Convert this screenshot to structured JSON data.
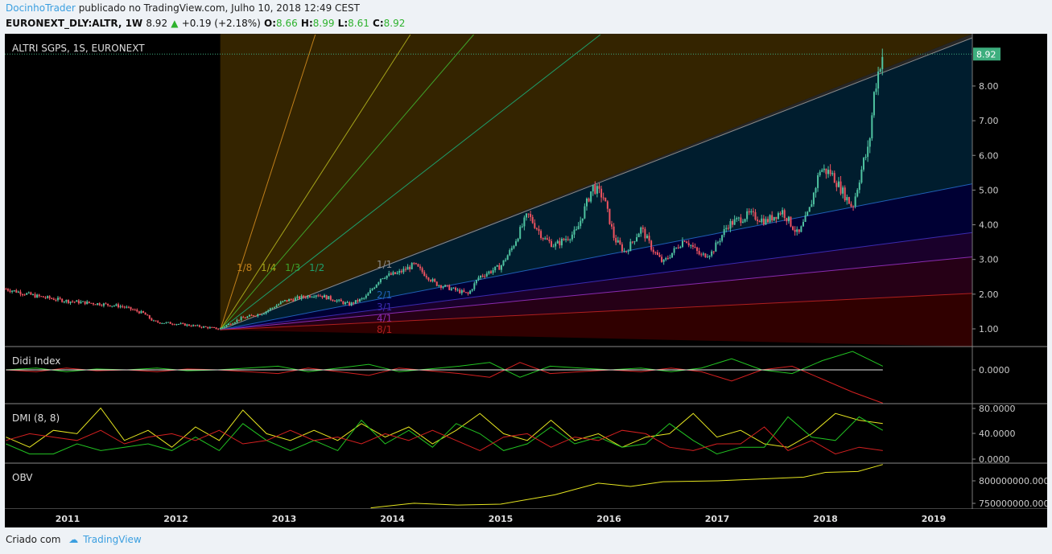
{
  "header": {
    "author": "DocinhoTrader",
    "published": "publicado no TradingView.com, Julho 10, 2018 12:49 CEST",
    "symbol": "EURONEXT_DLY:ALTR, 1W",
    "last": "8.92",
    "change": "+0.19 (+2.18%)",
    "o_label": "O:",
    "o": "8.66",
    "h_label": "H:",
    "h": "8.99",
    "l_label": "L:",
    "l": "8.61",
    "c_label": "C:",
    "c": "8.92"
  },
  "footer": {
    "created": "Criado com",
    "brand": "TradingView"
  },
  "colors": {
    "up": "#4fc3a1",
    "down": "#ef5360",
    "background": "#000000",
    "last_price": "#3dae7e"
  },
  "chart_data": [
    {
      "type": "candlestick",
      "title": "ALTRI SGPS, 1S, EURONEXT",
      "last_price_label": "8.92",
      "y_ticks": [
        "1.00",
        "2.00",
        "3.00",
        "4.00",
        "5.00",
        "6.00",
        "7.00",
        "8.00"
      ],
      "x_ticks": [
        "2011",
        "2012",
        "2013",
        "2014",
        "2015",
        "2016",
        "2017",
        "2018",
        "2019"
      ],
      "price_path": [
        [
          2010.43,
          2.15
        ],
        [
          2010.7,
          1.95
        ],
        [
          2011.0,
          1.8
        ],
        [
          2011.3,
          1.72
        ],
        [
          2011.5,
          1.65
        ],
        [
          2011.7,
          1.45
        ],
        [
          2011.8,
          1.2
        ],
        [
          2012.0,
          1.15
        ],
        [
          2012.4,
          1.0
        ],
        [
          2012.6,
          1.3
        ],
        [
          2012.8,
          1.45
        ],
        [
          2013.0,
          1.8
        ],
        [
          2013.3,
          2.0
        ],
        [
          2013.6,
          1.7
        ],
        [
          2013.75,
          1.9
        ],
        [
          2013.9,
          2.5
        ],
        [
          2014.05,
          2.6
        ],
        [
          2014.2,
          2.85
        ],
        [
          2014.4,
          2.3
        ],
        [
          2014.7,
          2.0
        ],
        [
          2014.8,
          2.5
        ],
        [
          2015.0,
          2.8
        ],
        [
          2015.1,
          3.3
        ],
        [
          2015.25,
          4.3
        ],
        [
          2015.4,
          3.6
        ],
        [
          2015.5,
          3.4
        ],
        [
          2015.7,
          3.8
        ],
        [
          2015.85,
          5.1
        ],
        [
          2015.95,
          4.8
        ],
        [
          2016.05,
          3.6
        ],
        [
          2016.15,
          3.2
        ],
        [
          2016.3,
          3.9
        ],
        [
          2016.4,
          3.3
        ],
        [
          2016.5,
          2.9
        ],
        [
          2016.7,
          3.6
        ],
        [
          2016.85,
          3.1
        ],
        [
          2016.95,
          3.2
        ],
        [
          2017.1,
          4.0
        ],
        [
          2017.3,
          4.3
        ],
        [
          2017.45,
          4.1
        ],
        [
          2017.6,
          4.4
        ],
        [
          2017.75,
          3.7
        ],
        [
          2017.85,
          4.4
        ],
        [
          2017.95,
          5.6
        ],
        [
          2018.05,
          5.5
        ],
        [
          2018.15,
          5.0
        ],
        [
          2018.25,
          4.5
        ],
        [
          2018.35,
          5.8
        ],
        [
          2018.4,
          6.2
        ],
        [
          2018.45,
          7.8
        ],
        [
          2018.5,
          8.6
        ],
        [
          2018.53,
          8.92
        ]
      ],
      "gann_fan": {
        "origin": [
          2012.41,
          0.97
        ],
        "lines": [
          {
            "label": "1/8",
            "color": "#c07f1a"
          },
          {
            "label": "1/4",
            "color": "#a5a51a"
          },
          {
            "label": "1/3",
            "color": "#3fa32a"
          },
          {
            "label": "1/2",
            "color": "#1e9e6a"
          },
          {
            "label": "1/1",
            "color": "#8a8a8a"
          },
          {
            "label": "2/1",
            "color": "#1f5fb5"
          },
          {
            "label": "3/1",
            "color": "#3c2ab0"
          },
          {
            "label": "4/1",
            "color": "#8a2bb0"
          },
          {
            "label": "8/1",
            "color": "#b01f1f"
          }
        ]
      }
    },
    {
      "type": "line",
      "title": "Didi Index",
      "y_ticks": [
        "0.0000"
      ],
      "series": [
        {
          "color": "#22c422",
          "values": [
            0,
            0.1,
            -0.1,
            0.05,
            0,
            0.1,
            -0.05,
            0,
            0.1,
            0.2,
            -0.1,
            0.1,
            0.3,
            -0.1,
            0.05,
            0.2,
            0.4,
            -0.4,
            0.2,
            0.1,
            0,
            0.1,
            -0.1,
            0.1,
            0.6,
            0,
            -0.2,
            0.5,
            1.0,
            0.2
          ]
        },
        {
          "color": "#d42020",
          "values": [
            0,
            -0.1,
            0.1,
            -0.05,
            0,
            -0.1,
            0.05,
            0,
            -0.1,
            -0.2,
            0.1,
            -0.1,
            -0.3,
            0.1,
            -0.05,
            -0.2,
            -0.4,
            0.4,
            -0.2,
            -0.1,
            0,
            -0.1,
            0.1,
            -0.1,
            -0.6,
            0,
            0.2,
            -0.5,
            -1.2,
            -1.8
          ]
        },
        {
          "color": "#e8e8e8",
          "values": [
            0,
            0,
            0,
            0,
            0,
            0,
            0,
            0,
            0,
            0,
            0,
            0,
            0,
            0,
            0,
            0,
            0,
            0,
            0,
            0,
            0,
            0,
            0,
            0,
            0,
            0,
            0,
            0,
            0,
            0
          ]
        }
      ]
    },
    {
      "type": "line",
      "title": "DMI (8, 8)",
      "y_ticks": [
        "80.0000",
        "40.0000",
        "0.0000"
      ],
      "series": [
        {
          "color": "#e6e620",
          "values": [
            35,
            20,
            45,
            40,
            78,
            30,
            45,
            20,
            50,
            30,
            75,
            40,
            30,
            45,
            30,
            55,
            35,
            50,
            25,
            45,
            70,
            40,
            30,
            60,
            30,
            40,
            20,
            35,
            40,
            70,
            35,
            45,
            25,
            20,
            40,
            70,
            60,
            55
          ]
        },
        {
          "color": "#22c422",
          "values": [
            25,
            10,
            10,
            25,
            15,
            20,
            25,
            15,
            35,
            15,
            55,
            30,
            15,
            30,
            15,
            60,
            25,
            45,
            20,
            55,
            40,
            15,
            25,
            50,
            25,
            35,
            20,
            25,
            55,
            30,
            10,
            20,
            20,
            65,
            35,
            30,
            65,
            45
          ]
        },
        {
          "color": "#d42020",
          "values": [
            30,
            40,
            35,
            30,
            45,
            25,
            35,
            40,
            30,
            45,
            25,
            30,
            45,
            30,
            35,
            25,
            40,
            30,
            45,
            30,
            15,
            35,
            40,
            20,
            35,
            30,
            45,
            40,
            20,
            15,
            25,
            25,
            50,
            15,
            30,
            10,
            20,
            15
          ]
        }
      ]
    },
    {
      "type": "line",
      "title": "OBV",
      "y_ticks": [
        "800000000.0000",
        "750000000.0000"
      ],
      "series": [
        {
          "color": "#e6e620",
          "values": [
            [
              2013.8,
              742000000
            ],
            [
              2014.2,
              752000000
            ],
            [
              2014.6,
              748000000
            ],
            [
              2015.0,
              750000000
            ],
            [
              2015.5,
              770000000
            ],
            [
              2015.9,
              795000000
            ],
            [
              2016.2,
              788000000
            ],
            [
              2016.5,
              798000000
            ],
            [
              2017.0,
              800000000
            ],
            [
              2017.5,
              805000000
            ],
            [
              2017.8,
              808000000
            ],
            [
              2018.0,
              818000000
            ],
            [
              2018.3,
              820000000
            ],
            [
              2018.53,
              835000000
            ]
          ]
        }
      ]
    }
  ]
}
